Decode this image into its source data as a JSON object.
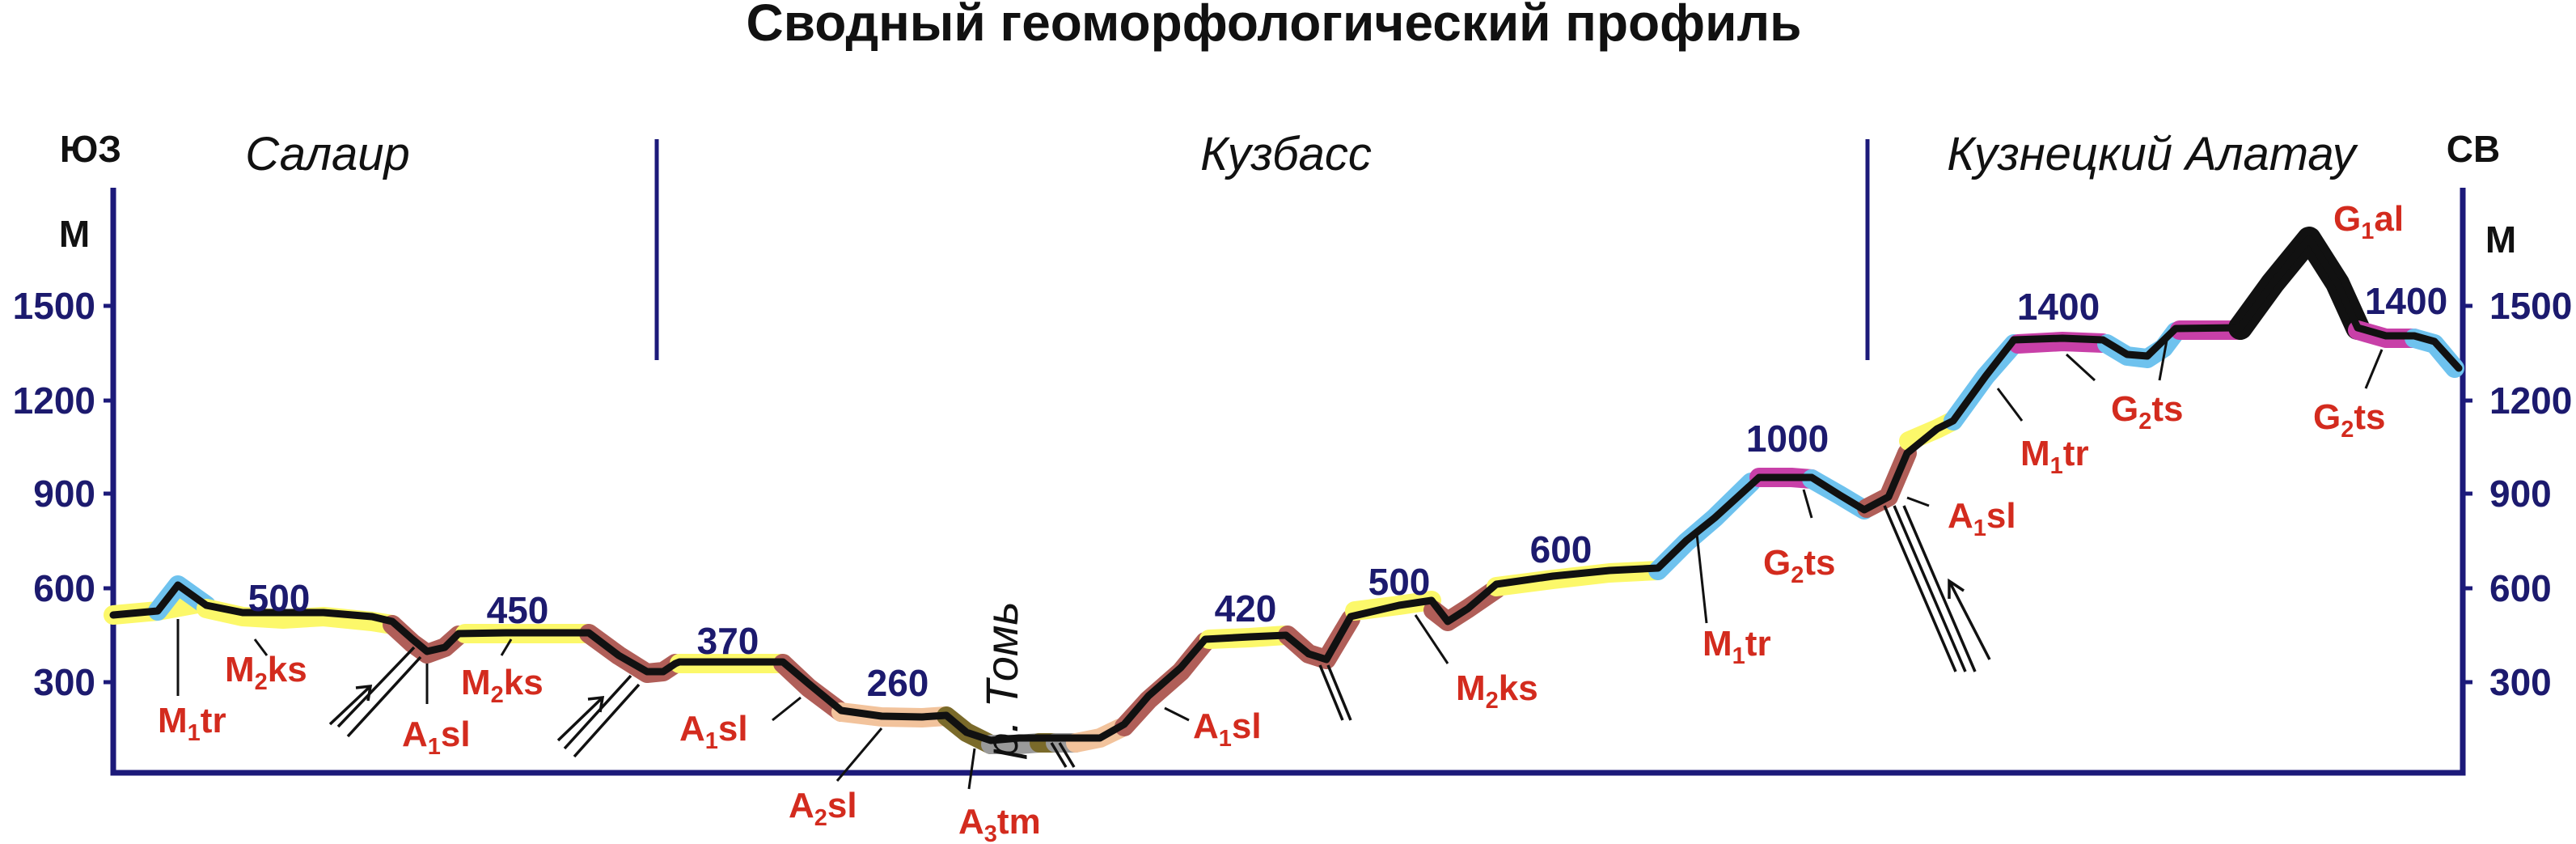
{
  "title": "Сводный геоморфологический профиль",
  "directions": {
    "left": "ЮЗ",
    "right": "СВ"
  },
  "axis": {
    "unit": "М",
    "ticks": [
      "1500",
      "1200",
      "900",
      "600",
      "300"
    ]
  },
  "regions": [
    "Салаир",
    "Кузбасс",
    "Кузнецкий Алатау"
  ],
  "river": "р. Томь",
  "elevations": [
    "500",
    "450",
    "370",
    "260",
    "420",
    "500",
    "600",
    "1000",
    "1400",
    "1400"
  ],
  "labels": [
    {
      "id": "m1tr-1",
      "main": "M",
      "sub": "1",
      "rest": "tr"
    },
    {
      "id": "m2ks-1",
      "main": "M",
      "sub": "2",
      "rest": "ks"
    },
    {
      "id": "a1sl-1",
      "main": "A",
      "sub": "1",
      "rest": "sl"
    },
    {
      "id": "m2ks-2",
      "main": "M",
      "sub": "2",
      "rest": "ks"
    },
    {
      "id": "a1sl-2",
      "main": "A",
      "sub": "1",
      "rest": "sl"
    },
    {
      "id": "a2sl",
      "main": "A",
      "sub": "2",
      "rest": "sl"
    },
    {
      "id": "a3tm",
      "main": "A",
      "sub": "3",
      "rest": "tm"
    },
    {
      "id": "a1sl-3",
      "main": "A",
      "sub": "1",
      "rest": "sl"
    },
    {
      "id": "m2ks-3",
      "main": "M",
      "sub": "2",
      "rest": "ks"
    },
    {
      "id": "m1tr-2",
      "main": "M",
      "sub": "1",
      "rest": "tr"
    },
    {
      "id": "g2ts-1",
      "main": "G",
      "sub": "2",
      "rest": "ts"
    },
    {
      "id": "a1sl-4",
      "main": "A",
      "sub": "1",
      "rest": "sl"
    },
    {
      "id": "m1tr-3",
      "main": "M",
      "sub": "1",
      "rest": "tr"
    },
    {
      "id": "g2ts-2",
      "main": "G",
      "sub": "2",
      "rest": "ts"
    },
    {
      "id": "g1al",
      "main": "G",
      "sub": "1",
      "rest": "al"
    },
    {
      "id": "g2ts-3",
      "main": "G",
      "sub": "2",
      "rest": "ts"
    }
  ],
  "surface_colors": {
    "M2ks": "#fcf86a",
    "M1tr": "#6ec2ee",
    "A1sl": "#b05e58",
    "A2sl": "#f2c39c",
    "A3tm": "#7a6a2a",
    "floodplain": "#9a9a9a",
    "G2ts": "#c840a8",
    "G1al": "#111111",
    "profile": "#111111",
    "frame": "#1c1a7a"
  }
}
